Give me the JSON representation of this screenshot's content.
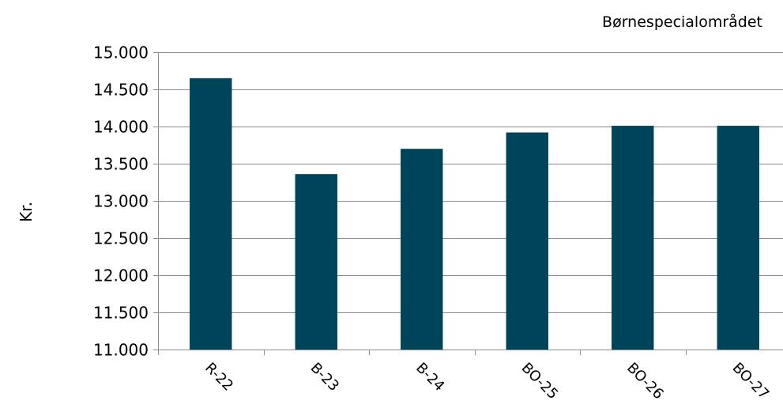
{
  "chart_data": {
    "type": "bar",
    "title": "Børnespecialområdet",
    "ylabel": "Kr.",
    "xlabel": "",
    "categories": [
      "R-22",
      "B-23",
      "B-24",
      "BO-25",
      "BO-26",
      "BO-27"
    ],
    "values": [
      14650,
      13360,
      13700,
      13920,
      14010,
      14010
    ],
    "ylim": [
      11000,
      15000
    ],
    "yticks": [
      11000,
      11500,
      12000,
      12500,
      13000,
      13500,
      14000,
      14500,
      15000
    ],
    "ytick_labels": [
      "11.000",
      "11.500",
      "12.000",
      "12.500",
      "13.000",
      "13.500",
      "14.000",
      "14.500",
      "15.000"
    ],
    "grid": true,
    "bar_color": "#00445A",
    "grid_color": "#8C8C8C"
  }
}
